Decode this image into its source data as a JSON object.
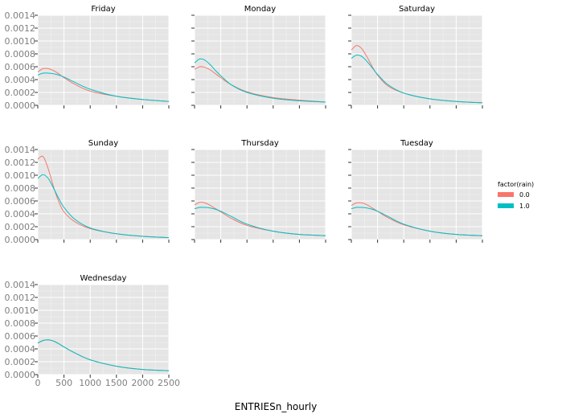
{
  "chart_data": {
    "type": "line",
    "xlabel": "ENTRIESn_hourly",
    "ylabel": "",
    "xlim": [
      0,
      2500
    ],
    "ylim": [
      0,
      0.0014
    ],
    "x_ticks": [
      "0",
      "500",
      "1000",
      "1500",
      "2000",
      "2500"
    ],
    "y_ticks": [
      "0.0000",
      "0.0002",
      "0.0004",
      "0.0006",
      "0.0008",
      "0.0010",
      "0.0012",
      "0.0014"
    ],
    "grid": true,
    "legend": {
      "title": "factor(rain)",
      "placement": "right",
      "entries": [
        {
          "label": "0.0",
          "color": "#f8766d"
        },
        {
          "label": "1.0",
          "color": "#00bfc4"
        }
      ]
    },
    "x": [
      0,
      100,
      200,
      300,
      400,
      500,
      700,
      1000,
      1500,
      2000,
      2500
    ],
    "panels": [
      {
        "title": "Friday",
        "series": [
          {
            "name": "0.0",
            "values": [
              0.00052,
              0.00057,
              0.00057,
              0.00054,
              0.00049,
              0.00043,
              0.00033,
              0.00022,
              0.00014,
              9e-05,
              6e-05
            ]
          },
          {
            "name": "1.0",
            "values": [
              0.00047,
              0.0005,
              0.0005,
              0.00049,
              0.00047,
              0.00044,
              0.00036,
              0.00025,
              0.00014,
              9e-05,
              6e-05
            ]
          }
        ]
      },
      {
        "title": "Monday",
        "series": [
          {
            "name": "0.0",
            "values": [
              0.00056,
              0.0006,
              0.00059,
              0.00055,
              0.00049,
              0.00043,
              0.00032,
              0.00021,
              0.00012,
              8e-05,
              5e-05
            ]
          },
          {
            "name": "1.0",
            "values": [
              0.00066,
              0.00072,
              0.0007,
              0.00063,
              0.00054,
              0.00046,
              0.00032,
              0.0002,
              0.00011,
              7e-05,
              5e-05
            ]
          }
        ]
      },
      {
        "title": "Saturday",
        "series": [
          {
            "name": "0.0",
            "values": [
              0.00086,
              0.00093,
              0.00088,
              0.00075,
              0.0006,
              0.00047,
              0.0003,
              0.00019,
              0.0001,
              6e-05,
              4e-05
            ]
          },
          {
            "name": "1.0",
            "values": [
              0.00073,
              0.00078,
              0.00076,
              0.00068,
              0.00058,
              0.00048,
              0.00032,
              0.00019,
              0.0001,
              6e-05,
              4e-05
            ]
          }
        ]
      },
      {
        "title": "Sunday",
        "series": [
          {
            "name": "0.0",
            "values": [
              0.00125,
              0.00129,
              0.0011,
              0.00082,
              0.00059,
              0.00043,
              0.00028,
              0.00017,
              9e-05,
              5e-05,
              3e-05
            ]
          },
          {
            "name": "1.0",
            "values": [
              0.00095,
              0.00101,
              0.00095,
              0.0008,
              0.00064,
              0.0005,
              0.00032,
              0.00018,
              9e-05,
              5e-05,
              3e-05
            ]
          }
        ]
      },
      {
        "title": "Thursday",
        "series": [
          {
            "name": "0.0",
            "values": [
              0.00054,
              0.00058,
              0.00057,
              0.00053,
              0.00048,
              0.00043,
              0.00033,
              0.00022,
              0.00013,
              8e-05,
              6e-05
            ]
          },
          {
            "name": "1.0",
            "values": [
              0.00048,
              0.0005,
              0.0005,
              0.00049,
              0.00047,
              0.00044,
              0.00036,
              0.00024,
              0.00013,
              8e-05,
              6e-05
            ]
          }
        ]
      },
      {
        "title": "Tuesday",
        "series": [
          {
            "name": "0.0",
            "values": [
              0.00053,
              0.00057,
              0.00057,
              0.00054,
              0.00049,
              0.00044,
              0.00034,
              0.00023,
              0.00013,
              8e-05,
              6e-05
            ]
          },
          {
            "name": "1.0",
            "values": [
              0.00048,
              0.0005,
              0.0005,
              0.00049,
              0.00047,
              0.00044,
              0.00036,
              0.00024,
              0.00013,
              8e-05,
              6e-05
            ]
          }
        ]
      },
      {
        "title": "Wednesday",
        "series": [
          {
            "name": "0.0",
            "values": [
              0.00049,
              0.00053,
              0.00054,
              0.00052,
              0.00048,
              0.00043,
              0.00034,
              0.00023,
              0.00013,
              8e-05,
              6e-05
            ]
          },
          {
            "name": "1.0",
            "values": [
              0.00049,
              0.00053,
              0.00054,
              0.00052,
              0.00048,
              0.00043,
              0.00034,
              0.00023,
              0.00013,
              8e-05,
              6e-05
            ]
          }
        ]
      }
    ]
  }
}
